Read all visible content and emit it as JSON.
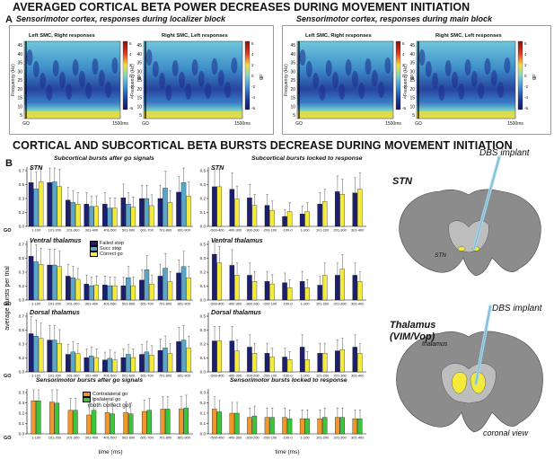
{
  "headings": {
    "a_title": "AVERAGED CORTICAL BETA POWER DECREASES DURING MOVEMENT INITIATION",
    "b_title": "CORTICAL AND SUBCORTICAL BETA BURSTS DECREASE DURING MOVEMENT INITIATION",
    "a_letter": "A",
    "b_letter": "B"
  },
  "spectro_panels": [
    {
      "title": "Sensorimotor cortex, responses during localizer block",
      "maps": [
        {
          "label": "Left SMC, Right responses"
        },
        {
          "label": "Right SMC, Left responses"
        }
      ]
    },
    {
      "title": "Sensorimotor cortex, responses during main block",
      "maps": [
        {
          "label": "Left SMC, Right responses"
        },
        {
          "label": "Right SMC, Left responses"
        }
      ]
    }
  ],
  "spectro_axes": {
    "ylabel": "Frequency (Hz)",
    "yticks": [
      "45",
      "40",
      "35",
      "30",
      "25",
      "20",
      "15",
      "10",
      "5"
    ],
    "x_left": "GO",
    "x_right": "1500ms",
    "colorbar_ticks": [
      "6",
      "4",
      "2",
      "0",
      "-2",
      "-4",
      "-6"
    ],
    "colorbar_label": "dB",
    "colors": {
      "low": "#1a2a8c",
      "mid": "#5ec4e0",
      "high": "#d8301e",
      "yellow": "#f2e23a"
    }
  },
  "bar_axes": {
    "ylabel": "average bursts per trial",
    "xlabel": "time (ms)",
    "go_label": "GO",
    "yticks": [
      "0.6",
      "0.5",
      "0.4",
      "0.3",
      "0.2",
      "0.1",
      "0"
    ],
    "after_go_categories": [
      "1-100",
      "101-200",
      "201-300",
      "301-400",
      "401-500",
      "501-600",
      "601-700",
      "701-800",
      "801-900"
    ],
    "locked_categories": [
      "-500-400",
      "-400-300",
      "-300-200",
      "-200-100",
      "-100-0",
      "1-100",
      "101-200",
      "201-300",
      "301-400"
    ]
  },
  "bar_panels": {
    "sub_after_title": "Subcortical bursts after go signals",
    "sub_locked_title": "Subcortical bursts locked to response",
    "sm_after_title": "Sensorimotor bursts after go signals",
    "sm_locked_title": "Sensorimotor bursts locked to response",
    "row_labels": [
      "STN",
      "Ventral thalamus",
      "Dorsal thalamus"
    ]
  },
  "legend_sub": [
    {
      "label": "Failed stop",
      "color": "#1b1f6e"
    },
    {
      "label": "Succ stop",
      "color": "#5aa6c8"
    },
    {
      "label": "Correct go",
      "color": "#f3ea3b"
    }
  ],
  "legend_sm": {
    "items": [
      {
        "label": "Contralateral go",
        "color": "#f0962a"
      },
      {
        "label": "Ipsilateral go",
        "color": "#3cc43c"
      }
    ],
    "note": "(both correct go)"
  },
  "brain": {
    "stn_title": "STN",
    "stn_implant": "DBS implant",
    "stn_label": "STN",
    "thal_title_1": "Thalamus",
    "thal_title_2": "(VIM/Vop)",
    "thal_implant": "DBS implant",
    "thal_label": "thalamus",
    "view": "coronal view",
    "colors": {
      "brain": "#8c8c8c",
      "highlight": "#f3ea3b",
      "implant": "#9fd4ea"
    }
  },
  "chart_data": [
    {
      "type": "bar",
      "title": "STN — Subcortical bursts after go signals",
      "categories": [
        "1-100",
        "101-200",
        "201-300",
        "301-400",
        "401-500",
        "501-600",
        "601-700",
        "701-800",
        "801-900"
      ],
      "series": [
        {
          "name": "Failed stop",
          "values": [
            0.55,
            0.55,
            0.33,
            0.28,
            0.28,
            0.36,
            0.35,
            0.35,
            0.43
          ]
        },
        {
          "name": "Succ stop",
          "values": [
            0.47,
            0.56,
            0.3,
            0.25,
            0.23,
            0.28,
            0.35,
            0.48,
            0.55
          ]
        },
        {
          "name": "Correct go",
          "values": [
            0.56,
            0.5,
            0.28,
            0.25,
            0.23,
            0.24,
            0.26,
            0.3,
            0.38
          ]
        }
      ],
      "ylim": [
        0,
        0.7
      ]
    },
    {
      "type": "bar",
      "title": "STN — Subcortical bursts locked to response",
      "categories": [
        "-500-400",
        "-400-300",
        "-300-200",
        "-200-100",
        "-100-0",
        "1-100",
        "101-200",
        "201-300",
        "301-400"
      ],
      "series": [
        {
          "name": "Failed stop",
          "values": [
            0.32,
            0.3,
            0.23,
            0.17,
            0.08,
            0.1,
            0.18,
            0.28,
            0.27
          ]
        },
        {
          "name": "Correct go",
          "values": [
            0.32,
            0.22,
            0.17,
            0.13,
            0.12,
            0.12,
            0.2,
            0.26,
            0.3
          ]
        }
      ],
      "ylim": [
        0,
        0.45
      ]
    },
    {
      "type": "bar",
      "title": "Ventral thalamus — Subcortical bursts after go signals",
      "categories": [
        "1-100",
        "101-200",
        "201-300",
        "301-400",
        "401-500",
        "501-600",
        "601-700",
        "701-800",
        "801-900"
      ],
      "series": [
        {
          "name": "Failed stop",
          "values": [
            0.55,
            0.44,
            0.3,
            0.2,
            0.19,
            0.18,
            0.25,
            0.3,
            0.34
          ]
        },
        {
          "name": "Succ stop",
          "values": [
            0.48,
            0.44,
            0.28,
            0.18,
            0.18,
            0.28,
            0.38,
            0.4,
            0.42
          ]
        },
        {
          "name": "Correct go",
          "values": [
            0.45,
            0.42,
            0.26,
            0.19,
            0.18,
            0.18,
            0.2,
            0.23,
            0.28
          ]
        }
      ],
      "ylim": [
        0,
        0.7
      ]
    },
    {
      "type": "bar",
      "title": "Ventral thalamus — Subcortical bursts locked to response",
      "categories": [
        "-500-400",
        "-400-300",
        "-300-200",
        "-200-100",
        "-100-0",
        "1-100",
        "101-200",
        "201-300",
        "301-400"
      ],
      "series": [
        {
          "name": "Failed stop",
          "values": [
            0.37,
            0.28,
            0.2,
            0.15,
            0.14,
            0.15,
            0.12,
            0.2,
            0.2
          ]
        },
        {
          "name": "Correct go",
          "values": [
            0.3,
            0.2,
            0.15,
            0.13,
            0.1,
            0.1,
            0.2,
            0.25,
            0.15
          ]
        }
      ],
      "ylim": [
        0,
        0.45
      ]
    },
    {
      "type": "bar",
      "title": "Dorsal thalamus — Subcortical bursts after go signals",
      "categories": [
        "1-100",
        "101-200",
        "201-300",
        "301-400",
        "401-500",
        "501-600",
        "601-700",
        "701-800",
        "801-900"
      ],
      "series": [
        {
          "name": "Failed stop",
          "values": [
            0.48,
            0.4,
            0.22,
            0.18,
            0.15,
            0.18,
            0.22,
            0.27,
            0.38
          ]
        },
        {
          "name": "Succ stop",
          "values": [
            0.45,
            0.4,
            0.25,
            0.2,
            0.17,
            0.22,
            0.25,
            0.3,
            0.4
          ]
        },
        {
          "name": "Correct go",
          "values": [
            0.42,
            0.36,
            0.23,
            0.18,
            0.15,
            0.18,
            0.21,
            0.23,
            0.3
          ]
        }
      ],
      "ylim": [
        0,
        0.7
      ]
    },
    {
      "type": "bar",
      "title": "Dorsal thalamus — Subcortical bursts locked to response",
      "categories": [
        "-500-400",
        "-400-300",
        "-300-200",
        "-200-100",
        "-100-0",
        "1-100",
        "101-200",
        "201-300",
        "301-400"
      ],
      "series": [
        {
          "name": "Failed stop",
          "values": [
            0.25,
            0.25,
            0.2,
            0.15,
            0.12,
            0.2,
            0.15,
            0.17,
            0.2
          ]
        },
        {
          "name": "Correct go",
          "values": [
            0.25,
            0.17,
            0.15,
            0.12,
            0.1,
            0.1,
            0.15,
            0.18,
            0.15
          ]
        }
      ],
      "ylim": [
        0,
        0.45
      ]
    },
    {
      "type": "bar",
      "title": "Sensorimotor bursts after go signals",
      "categories": [
        "1-100",
        "101-200",
        "201-300",
        "301-400",
        "401-500",
        "501-600",
        "601-700",
        "701-800",
        "801-900"
      ],
      "series": [
        {
          "name": "Contralateral go",
          "values": [
            0.28,
            0.27,
            0.2,
            0.16,
            0.18,
            0.18,
            0.19,
            0.21,
            0.21
          ]
        },
        {
          "name": "Ipsilateral go",
          "values": [
            0.28,
            0.26,
            0.2,
            0.2,
            0.17,
            0.17,
            0.2,
            0.21,
            0.22
          ]
        }
      ],
      "ylim": [
        0,
        0.35
      ]
    },
    {
      "type": "bar",
      "title": "Sensorimotor bursts locked to response",
      "categories": [
        "-500-400",
        "-400-300",
        "-300-200",
        "-200-100",
        "-100-0",
        "1-100",
        "101-200",
        "201-300",
        "301-400"
      ],
      "series": [
        {
          "name": "Contralateral go",
          "values": [
            0.18,
            0.15,
            0.12,
            0.12,
            0.12,
            0.11,
            0.11,
            0.12,
            0.11
          ]
        },
        {
          "name": "Ipsilateral go",
          "values": [
            0.16,
            0.15,
            0.13,
            0.12,
            0.11,
            0.11,
            0.12,
            0.12,
            0.11
          ]
        }
      ],
      "ylim": [
        0,
        0.3
      ]
    }
  ]
}
